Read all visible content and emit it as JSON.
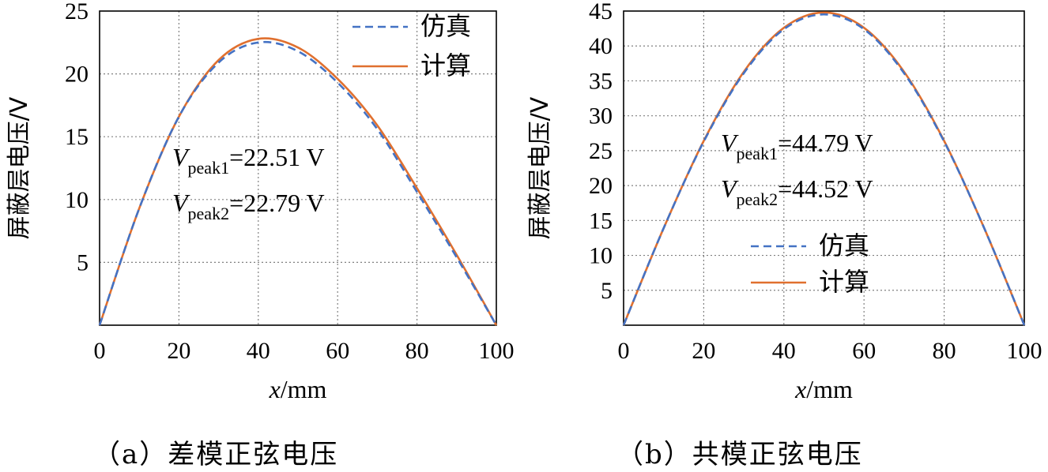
{
  "chart_data": [
    {
      "type": "line",
      "caption": "（a）差模正弦电压",
      "xlabel_var": "x",
      "xlabel_unit": "/mm",
      "ylabel": "屏蔽层电压/V",
      "xlim": [
        0,
        100
      ],
      "ylim": [
        0,
        25
      ],
      "xticks": [
        0,
        20,
        40,
        60,
        80,
        100
      ],
      "yticks": [
        5,
        10,
        15,
        20,
        25
      ],
      "grid": true,
      "legend_position": "top-right",
      "series": [
        {
          "name": "仿真",
          "style": "dashed",
          "color": "#4472C4",
          "x": [
            0,
            10,
            20,
            30,
            40,
            50,
            60,
            70,
            80,
            90,
            100
          ],
          "y": [
            0,
            9.3,
            16.6,
            20.9,
            22.5,
            21.8,
            19.3,
            15.6,
            10.6,
            5.4,
            0
          ]
        },
        {
          "name": "计算",
          "style": "solid",
          "color": "#E0702F",
          "x": [
            0,
            10,
            20,
            30,
            40,
            50,
            60,
            70,
            80,
            90,
            100
          ],
          "y": [
            0,
            9.3,
            16.6,
            21.1,
            22.79,
            22.1,
            19.6,
            15.9,
            10.9,
            5.6,
            0
          ]
        }
      ],
      "annotations": [
        {
          "v": "V",
          "sub": "peak1",
          "value": "=22.51 V"
        },
        {
          "v": "V",
          "sub": "peak2",
          "value": "=22.79 V"
        }
      ]
    },
    {
      "type": "line",
      "caption": "（b）共模正弦电压",
      "xlabel_var": "x",
      "xlabel_unit": "/mm",
      "ylabel": "屏蔽层电压/V",
      "xlim": [
        0,
        100
      ],
      "ylim": [
        0,
        45
      ],
      "xticks": [
        0,
        20,
        40,
        60,
        80,
        100
      ],
      "yticks": [
        5,
        10,
        15,
        20,
        25,
        30,
        35,
        40,
        45
      ],
      "grid": true,
      "legend_position": "bottom-center",
      "series": [
        {
          "name": "仿真",
          "style": "dashed",
          "color": "#4472C4",
          "x": [
            0,
            10,
            20,
            30,
            40,
            50,
            60,
            70,
            80,
            90,
            100
          ],
          "y": [
            0,
            13.9,
            26.3,
            36.1,
            42.4,
            44.52,
            42.4,
            36.1,
            26.3,
            13.9,
            0
          ]
        },
        {
          "name": "计算",
          "style": "solid",
          "color": "#E0702F",
          "x": [
            0,
            10,
            20,
            30,
            40,
            50,
            60,
            70,
            80,
            90,
            100
          ],
          "y": [
            0,
            13.9,
            26.4,
            36.3,
            42.6,
            44.79,
            42.6,
            36.3,
            26.4,
            13.9,
            0
          ]
        }
      ],
      "annotations": [
        {
          "v": "V",
          "sub": "peak1",
          "value": "=44.79 V"
        },
        {
          "v": "V",
          "sub": "peak2",
          "value": "=44.52 V"
        }
      ]
    }
  ]
}
